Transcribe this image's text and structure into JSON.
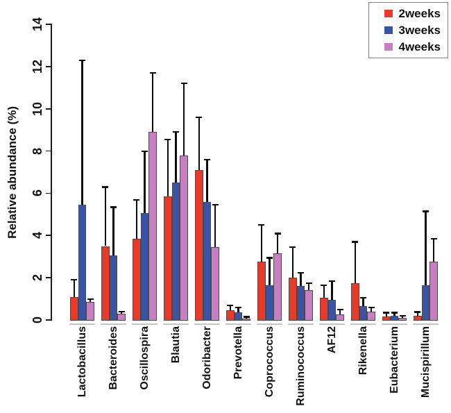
{
  "chart_data": {
    "type": "bar",
    "title": "",
    "xlabel": "",
    "ylabel": "Relative abundance (%)",
    "ylim": [
      0,
      14
    ],
    "yticks": [
      0,
      2,
      4,
      6,
      8,
      10,
      12,
      14
    ],
    "grid": false,
    "legend_position": "top-right",
    "error_bars": "upper-sd-with-cap",
    "categories": [
      "Lactobacillus",
      "Bacteroides",
      "Oscillospira",
      "Blautia",
      "Odoribacter",
      "Prevotella",
      "Coprococcus",
      "Ruminococcus",
      "AF12",
      "Rikenella",
      "Eubacterium",
      "Mucispirillum"
    ],
    "series": [
      {
        "name": "2weeks",
        "color": "#e63b2b",
        "values": [
          1.1,
          3.5,
          3.85,
          5.85,
          7.1,
          0.45,
          2.75,
          2.0,
          1.05,
          1.75,
          0.15,
          0.2
        ],
        "errors": [
          0.8,
          2.8,
          1.85,
          2.7,
          2.5,
          0.25,
          1.75,
          1.45,
          0.6,
          1.95,
          0.2,
          0.18
        ]
      },
      {
        "name": "3weeks",
        "color": "#3a53a4",
        "values": [
          5.45,
          3.05,
          5.05,
          6.5,
          5.6,
          0.35,
          1.65,
          1.6,
          0.95,
          0.65,
          0.2,
          1.65
        ],
        "errors": [
          6.85,
          2.3,
          2.95,
          2.4,
          2.0,
          0.25,
          1.3,
          0.65,
          0.9,
          0.4,
          0.15,
          3.5
        ]
      },
      {
        "name": "4weeks",
        "color": "#c67fc2",
        "values": [
          0.85,
          0.3,
          8.9,
          7.8,
          3.45,
          0.08,
          3.15,
          1.4,
          0.25,
          0.4,
          0.1,
          2.75
        ],
        "errors": [
          0.15,
          0.1,
          2.8,
          3.4,
          2.0,
          0.07,
          0.95,
          0.35,
          0.25,
          0.2,
          0.1,
          1.1
        ]
      }
    ],
    "colors": {
      "bar_outline": "#4a4a4a",
      "error_bar": "#0a0a0a",
      "axis": "#1a1a1a",
      "legend_border": "#7f7f7f"
    }
  }
}
